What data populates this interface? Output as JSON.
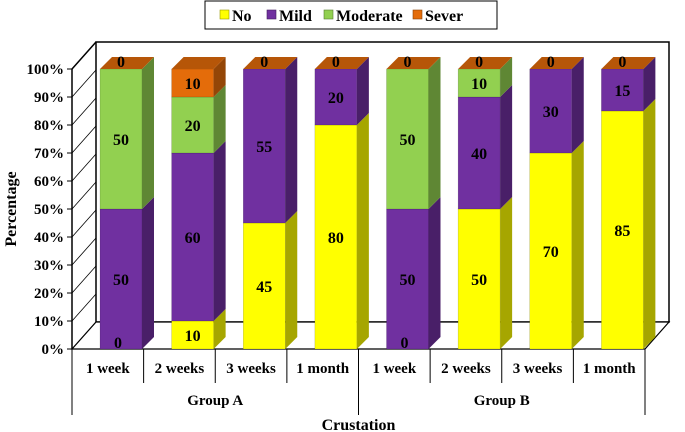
{
  "chart_data": {
    "type": "bar",
    "stacked": true,
    "three_d": true,
    "title": "",
    "xlabel": "Crustation",
    "ylabel": "Percentage",
    "ylim": [
      0,
      100
    ],
    "yticks": [
      "0%",
      "10%",
      "20%",
      "30%",
      "40%",
      "50%",
      "60%",
      "70%",
      "80%",
      "90%",
      "100%"
    ],
    "groups": [
      {
        "label": "Group A",
        "categories": [
          "1 week",
          "2 weeks",
          "3 weeks",
          "1 month"
        ]
      },
      {
        "label": "Group B",
        "categories": [
          "1 week",
          "2 weeks",
          "3 weeks",
          "1 month"
        ]
      }
    ],
    "series": [
      {
        "name": "No",
        "color": "#ffff00",
        "values": [
          0,
          10,
          45,
          80,
          0,
          50,
          70,
          85
        ]
      },
      {
        "name": "Mild",
        "color": "#7030a0",
        "values": [
          50,
          60,
          55,
          20,
          50,
          40,
          30,
          15
        ]
      },
      {
        "name": "Moderate",
        "color": "#92d050",
        "values": [
          50,
          20,
          0,
          0,
          50,
          10,
          0,
          0
        ]
      },
      {
        "name": "Sever",
        "color": "#e46c0a",
        "values": [
          0,
          10,
          0,
          0,
          0,
          0,
          0,
          0
        ]
      }
    ],
    "show_zero_labels": [
      "No",
      "Sever"
    ],
    "legend": {
      "placement": "top-center",
      "entries": [
        "No",
        "Mild",
        "Moderate",
        "Sever"
      ]
    }
  }
}
